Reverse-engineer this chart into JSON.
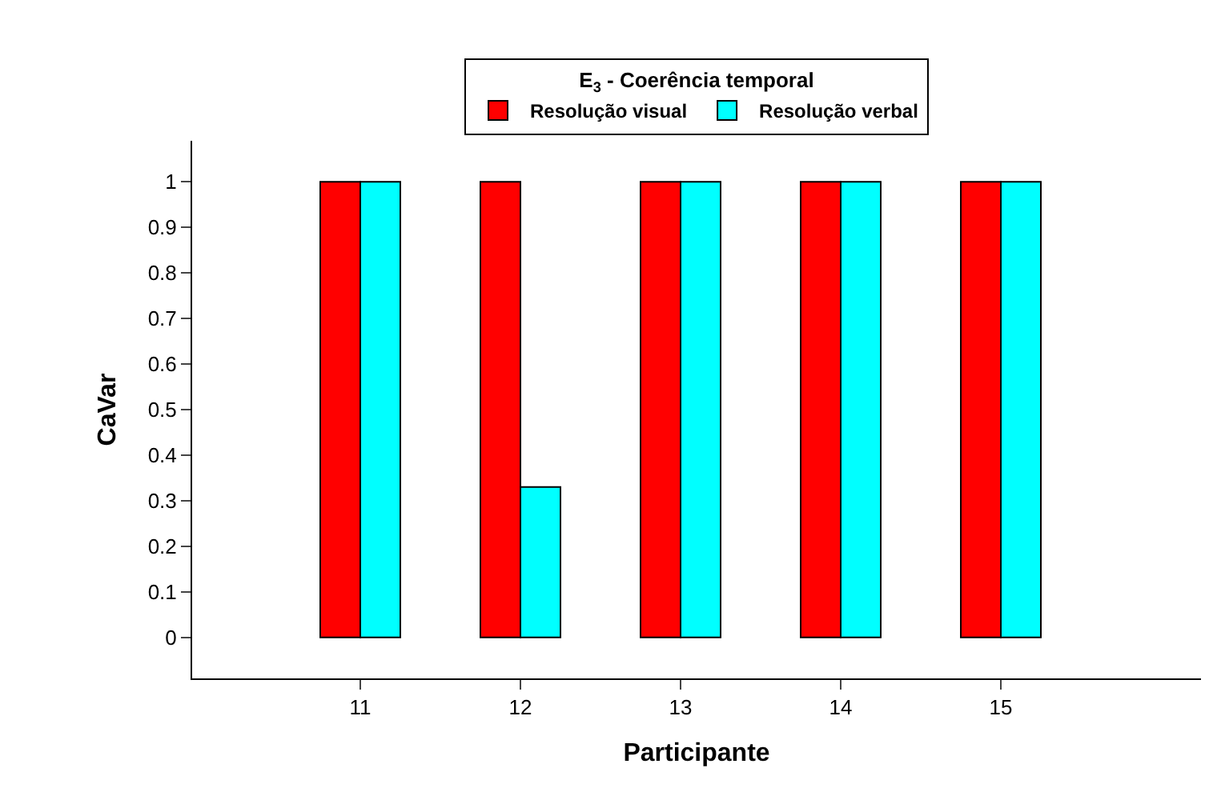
{
  "chart_data": {
    "type": "bar",
    "legend_title": "E$_{3}$ - Coerência temporal",
    "xlabel": "Participante",
    "ylabel": "CaVar",
    "x": [
      11,
      12,
      13,
      14,
      15
    ],
    "xlim": [
      9.95,
      16.25
    ],
    "xticks": [
      11,
      12,
      13,
      14,
      15
    ],
    "ylim": [
      -0.09,
      1.09
    ],
    "yticks": [
      0,
      0.1,
      0.2,
      0.3,
      0.4,
      0.5,
      0.6,
      0.7,
      0.8,
      0.9,
      1
    ],
    "series": [
      {
        "name": "Resolução visual",
        "color": "#ff0000",
        "values": [
          1,
          1,
          1,
          1,
          1
        ]
      },
      {
        "name": "Resolução verbal",
        "color": "#00ffff",
        "values": [
          1,
          0.33,
          1,
          1,
          1
        ]
      }
    ],
    "legend": "top"
  }
}
